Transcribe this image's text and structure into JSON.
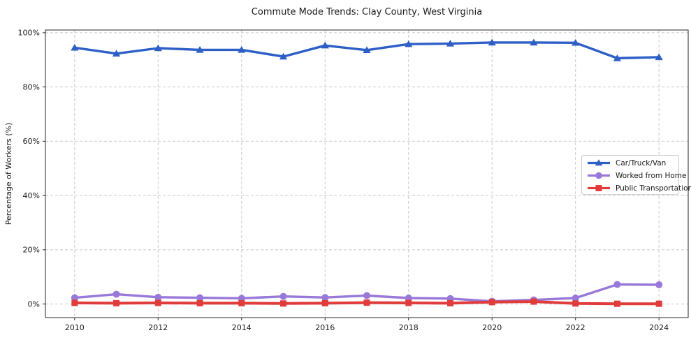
{
  "chart_data": {
    "type": "line",
    "title": "Commute Mode Trends: Clay County, West Virginia",
    "ylabel": "Percentage of Workers (%)",
    "xlabel": "",
    "x": [
      2010,
      2011,
      2012,
      2013,
      2014,
      2015,
      2016,
      2017,
      2018,
      2019,
      2020,
      2021,
      2022,
      2023,
      2024
    ],
    "series": [
      {
        "name": "Car/Truck/Van",
        "marker": "triangle",
        "color": "#2d5fc7",
        "values": [
          94.5,
          92.3,
          94.3,
          93.7,
          93.7,
          91.2,
          95.3,
          93.6,
          95.8,
          96.0,
          96.4,
          96.4,
          96.3,
          90.6,
          91.0
        ]
      },
      {
        "name": "Worked from Home",
        "marker": "circle",
        "color": "#9878d8",
        "values": [
          2.3,
          3.6,
          2.5,
          2.3,
          2.1,
          2.8,
          2.4,
          3.1,
          2.2,
          2.0,
          1.0,
          1.5,
          2.2,
          7.2,
          7.1
        ]
      },
      {
        "name": "Public Transportation",
        "marker": "square",
        "color": "#e03c3c",
        "values": [
          0.4,
          0.3,
          0.4,
          0.3,
          0.3,
          0.2,
          0.3,
          0.5,
          0.4,
          0.3,
          0.7,
          0.9,
          0.2,
          0.1,
          0.1
        ]
      }
    ],
    "xticks": [
      2010,
      2012,
      2014,
      2016,
      2018,
      2020,
      2022,
      2024
    ],
    "yticks": [
      0,
      20,
      40,
      60,
      80,
      100
    ],
    "ytick_suffix": "%",
    "xlim": [
      2009.3,
      2024.7
    ],
    "ylim": [
      -5,
      101
    ],
    "grid": true,
    "legend_position": "center right",
    "colors": {
      "grid": "#c9c9c9",
      "spine": "#262626",
      "text": "#1a1a1a",
      "background": "#ffffff"
    }
  }
}
